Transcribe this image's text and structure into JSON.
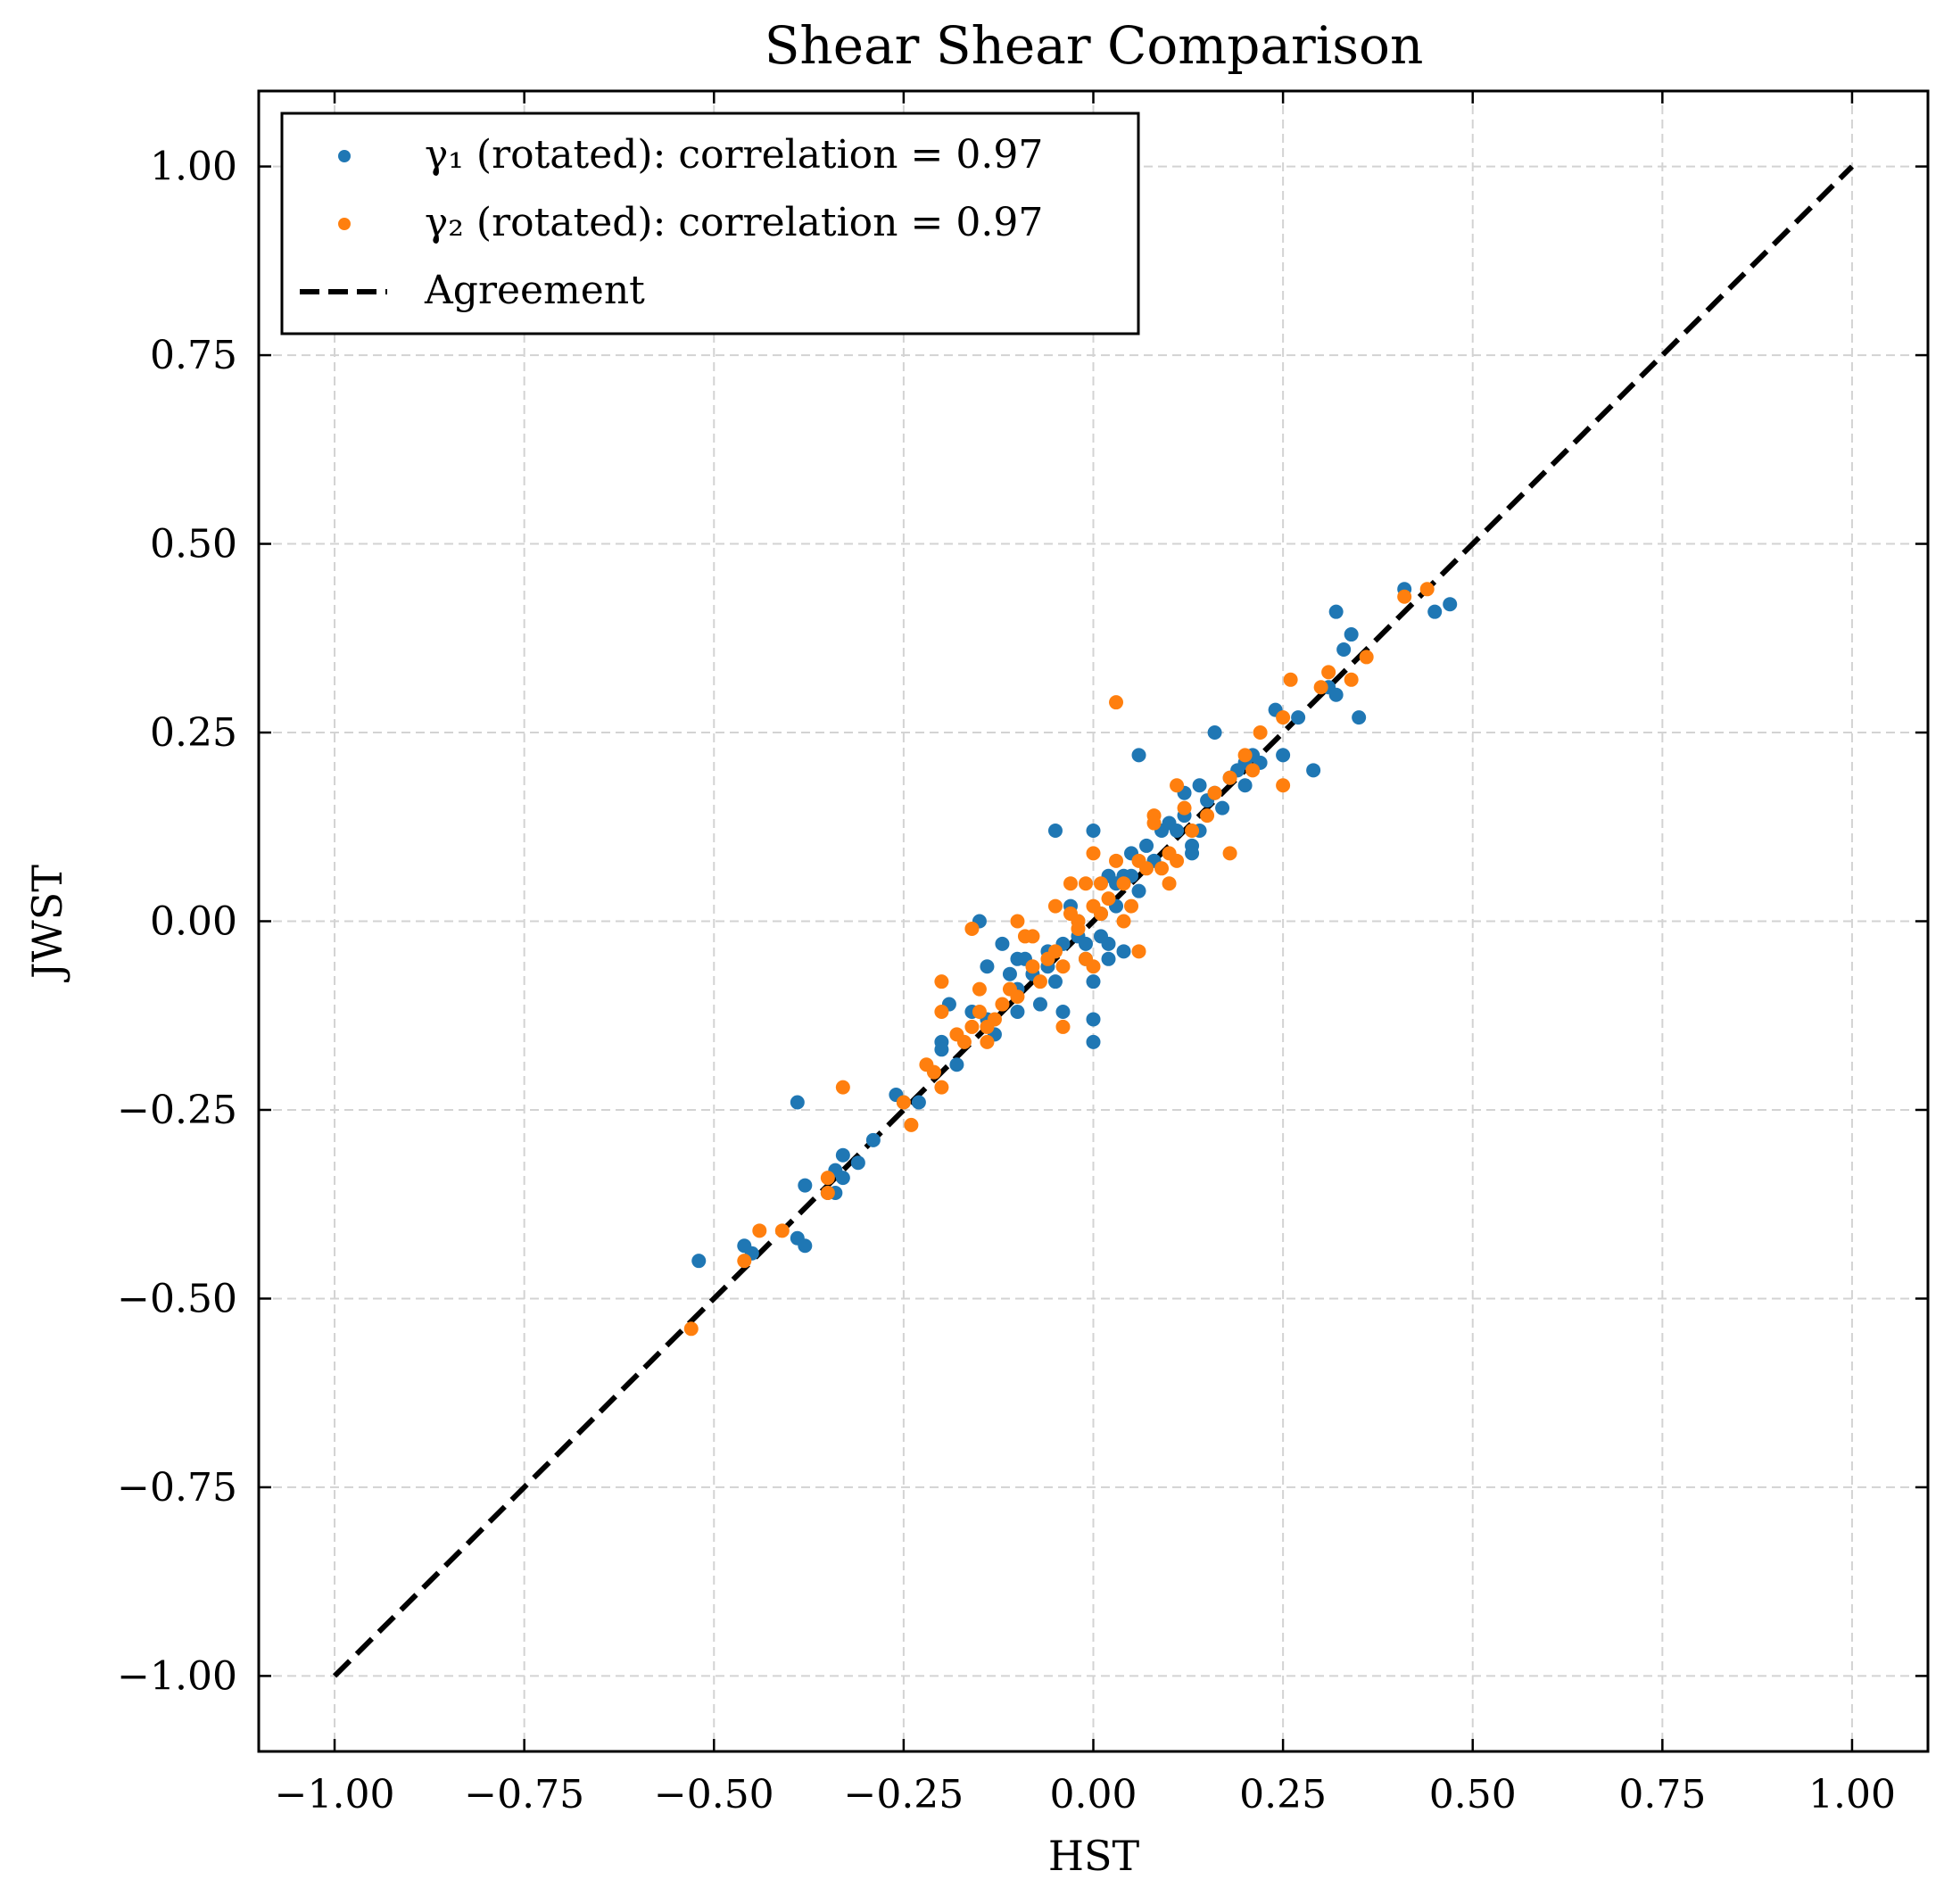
{
  "chart_data": {
    "type": "scatter",
    "title": "Shear Shear Comparison",
    "xlabel": "HST",
    "ylabel": "JWST",
    "xlim": [
      -1.1,
      1.1
    ],
    "ylim": [
      -1.1,
      1.1
    ],
    "xticks": [
      -1.0,
      -0.75,
      -0.5,
      -0.25,
      0.0,
      0.25,
      0.5,
      0.75,
      1.0
    ],
    "yticks": [
      -1.0,
      -0.75,
      -0.5,
      -0.25,
      0.0,
      0.25,
      0.5,
      0.75,
      1.0
    ],
    "xtick_labels": [
      "−1.00",
      "−0.75",
      "−0.50",
      "−0.25",
      "0.00",
      "0.25",
      "0.50",
      "0.75",
      "1.00"
    ],
    "ytick_labels": [
      "−1.00",
      "−0.75",
      "−0.50",
      "−0.25",
      "0.00",
      "0.25",
      "0.50",
      "0.75",
      "1.00"
    ],
    "grid": true,
    "legend_position": "top-left",
    "series": [
      {
        "name": "γ₁ (rotated): correlation = 0.97",
        "color": "#1f77b4",
        "points": [
          [
            -0.52,
            -0.45
          ],
          [
            -0.46,
            -0.43
          ],
          [
            -0.45,
            -0.44
          ],
          [
            -0.39,
            -0.24
          ],
          [
            -0.39,
            -0.42
          ],
          [
            -0.38,
            -0.43
          ],
          [
            -0.38,
            -0.35
          ],
          [
            -0.35,
            -0.36
          ],
          [
            -0.34,
            -0.33
          ],
          [
            -0.34,
            -0.36
          ],
          [
            -0.33,
            -0.31
          ],
          [
            -0.33,
            -0.34
          ],
          [
            -0.31,
            -0.32
          ],
          [
            -0.29,
            -0.29
          ],
          [
            -0.26,
            -0.23
          ],
          [
            -0.25,
            -0.24
          ],
          [
            -0.23,
            -0.24
          ],
          [
            -0.2,
            -0.16
          ],
          [
            -0.2,
            -0.17
          ],
          [
            -0.19,
            -0.11
          ],
          [
            -0.18,
            -0.19
          ],
          [
            -0.16,
            -0.12
          ],
          [
            -0.15,
            0.0
          ],
          [
            -0.14,
            -0.06
          ],
          [
            -0.14,
            -0.13
          ],
          [
            -0.13,
            -0.15
          ],
          [
            -0.12,
            -0.03
          ],
          [
            -0.11,
            -0.07
          ],
          [
            -0.1,
            -0.05
          ],
          [
            -0.1,
            -0.12
          ],
          [
            -0.1,
            -0.09
          ],
          [
            -0.09,
            -0.05
          ],
          [
            -0.08,
            -0.07
          ],
          [
            -0.07,
            -0.11
          ],
          [
            -0.06,
            -0.06
          ],
          [
            -0.06,
            -0.04
          ],
          [
            -0.05,
            0.12
          ],
          [
            -0.05,
            -0.08
          ],
          [
            -0.04,
            -0.12
          ],
          [
            -0.04,
            -0.03
          ],
          [
            -0.03,
            0.02
          ],
          [
            -0.02,
            0.0
          ],
          [
            -0.02,
            -0.02
          ],
          [
            -0.01,
            -0.05
          ],
          [
            -0.01,
            -0.03
          ],
          [
            0.0,
            -0.08
          ],
          [
            0.0,
            -0.13
          ],
          [
            0.0,
            -0.16
          ],
          [
            0.0,
            0.12
          ],
          [
            0.01,
            0.01
          ],
          [
            0.01,
            -0.02
          ],
          [
            0.02,
            -0.03
          ],
          [
            0.02,
            -0.05
          ],
          [
            0.02,
            0.06
          ],
          [
            0.03,
            0.05
          ],
          [
            0.03,
            0.02
          ],
          [
            0.04,
            0.06
          ],
          [
            0.04,
            -0.04
          ],
          [
            0.05,
            0.09
          ],
          [
            0.05,
            0.06
          ],
          [
            0.06,
            0.22
          ],
          [
            0.06,
            0.04
          ],
          [
            0.07,
            0.1
          ],
          [
            0.08,
            0.08
          ],
          [
            0.09,
            0.12
          ],
          [
            0.1,
            0.13
          ],
          [
            0.11,
            0.12
          ],
          [
            0.12,
            0.14
          ],
          [
            0.12,
            0.17
          ],
          [
            0.13,
            0.1
          ],
          [
            0.13,
            0.09
          ],
          [
            0.14,
            0.12
          ],
          [
            0.14,
            0.18
          ],
          [
            0.15,
            0.16
          ],
          [
            0.16,
            0.25
          ],
          [
            0.16,
            0.17
          ],
          [
            0.17,
            0.15
          ],
          [
            0.18,
            0.19
          ],
          [
            0.19,
            0.2
          ],
          [
            0.2,
            0.21
          ],
          [
            0.2,
            0.18
          ],
          [
            0.21,
            0.22
          ],
          [
            0.22,
            0.21
          ],
          [
            0.24,
            0.28
          ],
          [
            0.25,
            0.22
          ],
          [
            0.27,
            0.27
          ],
          [
            0.29,
            0.2
          ],
          [
            0.31,
            0.31
          ],
          [
            0.32,
            0.3
          ],
          [
            0.32,
            0.41
          ],
          [
            0.33,
            0.36
          ],
          [
            0.34,
            0.38
          ],
          [
            0.35,
            0.27
          ],
          [
            0.41,
            0.44
          ],
          [
            0.45,
            0.41
          ],
          [
            0.47,
            0.42
          ]
        ]
      },
      {
        "name": "γ₂ (rotated): correlation = 0.97",
        "color": "#ff7f0e",
        "points": [
          [
            -0.53,
            -0.54
          ],
          [
            -0.46,
            -0.45
          ],
          [
            -0.44,
            -0.41
          ],
          [
            -0.41,
            -0.41
          ],
          [
            -0.35,
            -0.36
          ],
          [
            -0.35,
            -0.34
          ],
          [
            -0.33,
            -0.22
          ],
          [
            -0.25,
            -0.24
          ],
          [
            -0.24,
            -0.27
          ],
          [
            -0.22,
            -0.19
          ],
          [
            -0.21,
            -0.2
          ],
          [
            -0.2,
            -0.22
          ],
          [
            -0.2,
            -0.12
          ],
          [
            -0.2,
            -0.08
          ],
          [
            -0.18,
            -0.15
          ],
          [
            -0.17,
            -0.16
          ],
          [
            -0.16,
            -0.14
          ],
          [
            -0.16,
            -0.01
          ],
          [
            -0.15,
            -0.09
          ],
          [
            -0.15,
            -0.12
          ],
          [
            -0.14,
            -0.16
          ],
          [
            -0.14,
            -0.14
          ],
          [
            -0.13,
            -0.13
          ],
          [
            -0.12,
            -0.11
          ],
          [
            -0.11,
            -0.09
          ],
          [
            -0.1,
            -0.1
          ],
          [
            -0.1,
            0.0
          ],
          [
            -0.09,
            -0.02
          ],
          [
            -0.08,
            -0.06
          ],
          [
            -0.08,
            -0.02
          ],
          [
            -0.07,
            -0.08
          ],
          [
            -0.06,
            -0.05
          ],
          [
            -0.05,
            -0.04
          ],
          [
            -0.05,
            0.02
          ],
          [
            -0.04,
            -0.06
          ],
          [
            -0.04,
            -0.14
          ],
          [
            -0.03,
            0.05
          ],
          [
            -0.03,
            0.01
          ],
          [
            -0.02,
            0.0
          ],
          [
            -0.02,
            -0.01
          ],
          [
            -0.01,
            0.05
          ],
          [
            -0.01,
            -0.05
          ],
          [
            0.0,
            0.02
          ],
          [
            0.0,
            0.09
          ],
          [
            0.0,
            -0.06
          ],
          [
            0.01,
            0.05
          ],
          [
            0.01,
            0.01
          ],
          [
            0.02,
            0.03
          ],
          [
            0.03,
            0.08
          ],
          [
            0.03,
            0.29
          ],
          [
            0.04,
            0.05
          ],
          [
            0.04,
            0.0
          ],
          [
            0.05,
            0.02
          ],
          [
            0.06,
            -0.04
          ],
          [
            0.06,
            0.08
          ],
          [
            0.07,
            0.07
          ],
          [
            0.08,
            0.14
          ],
          [
            0.08,
            0.13
          ],
          [
            0.09,
            0.07
          ],
          [
            0.1,
            0.05
          ],
          [
            0.1,
            0.09
          ],
          [
            0.11,
            0.18
          ],
          [
            0.11,
            0.08
          ],
          [
            0.12,
            0.15
          ],
          [
            0.13,
            0.12
          ],
          [
            0.15,
            0.14
          ],
          [
            0.16,
            0.17
          ],
          [
            0.18,
            0.09
          ],
          [
            0.18,
            0.19
          ],
          [
            0.2,
            0.22
          ],
          [
            0.21,
            0.2
          ],
          [
            0.22,
            0.25
          ],
          [
            0.25,
            0.27
          ],
          [
            0.25,
            0.18
          ],
          [
            0.26,
            0.32
          ],
          [
            0.3,
            0.31
          ],
          [
            0.31,
            0.33
          ],
          [
            0.34,
            0.32
          ],
          [
            0.36,
            0.35
          ],
          [
            0.41,
            0.43
          ],
          [
            0.44,
            0.44
          ]
        ]
      },
      {
        "name": "Agreement",
        "color": "#000000",
        "style": "dashed-line",
        "points": [
          [
            -1.0,
            -1.0
          ],
          [
            1.0,
            1.0
          ]
        ]
      }
    ]
  }
}
